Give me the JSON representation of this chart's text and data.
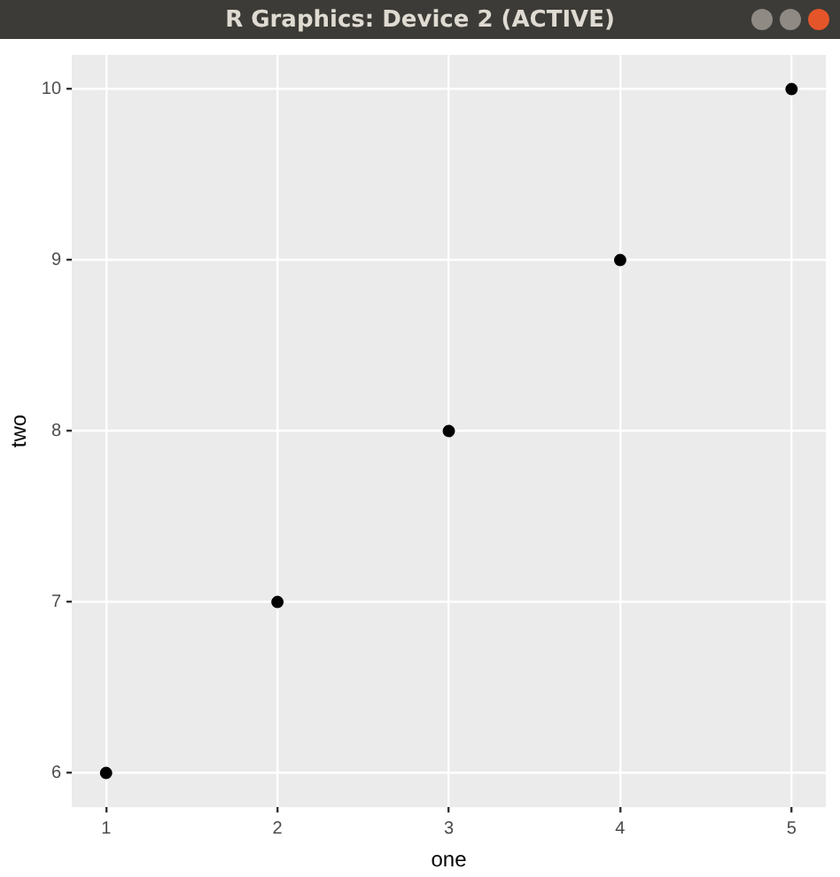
{
  "chart_data": {
    "type": "scatter",
    "title": "R Graphics: Device 2 (ACTIVE)",
    "xlabel": "one",
    "ylabel": "two",
    "x": [
      1,
      2,
      3,
      4,
      5
    ],
    "series": [
      {
        "color": "#000000",
        "values": [
          6,
          7,
          8,
          9,
          10
        ]
      }
    ],
    "xlim": [
      0.8,
      5.2
    ],
    "xticks": [
      1,
      2,
      3,
      4,
      5
    ],
    "ylim": [
      5.8,
      10.2
    ],
    "yticks": [
      6,
      7,
      8,
      9,
      10
    ],
    "grid": true,
    "legend": false,
    "marker": "circle"
  }
}
